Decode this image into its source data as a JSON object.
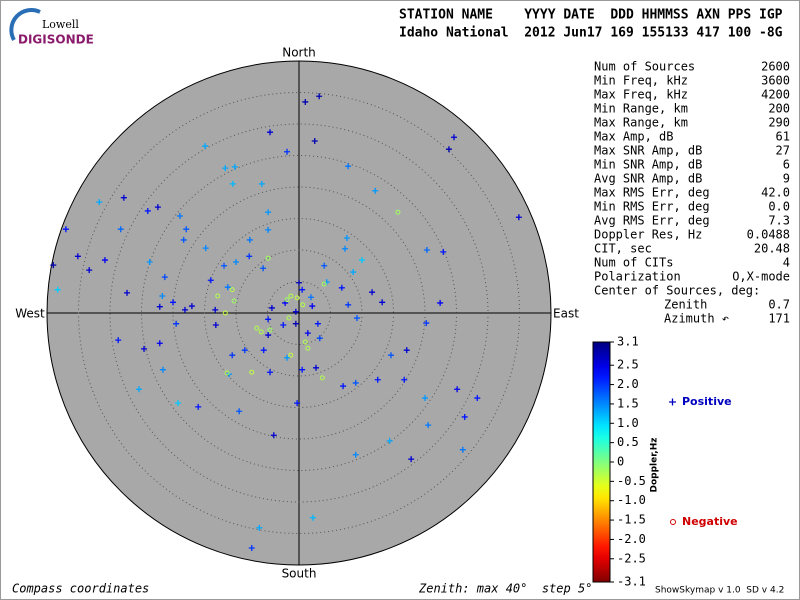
{
  "header": {
    "logo_top": "Lowell",
    "logo_bottom": "DIGISONDE",
    "columns_line": "STATION NAME    YYYY DATE  DDD HHMMSS AXN PPS IGP",
    "values_line": "Idaho National  2012 Jun17 169 155133 417 100 -8G"
  },
  "stats": [
    {
      "label": "Num of Sources",
      "value": "2600"
    },
    {
      "label": "Min Freq, kHz",
      "value": "3600"
    },
    {
      "label": "Max Freq, kHz",
      "value": "4200"
    },
    {
      "label": "Min Range, km",
      "value": "200"
    },
    {
      "label": "Max Range, km",
      "value": "290"
    },
    {
      "label": "Max Amp, dB",
      "value": "61"
    },
    {
      "label": "Max SNR Amp, dB",
      "value": "27"
    },
    {
      "label": "Min SNR Amp, dB",
      "value": "6"
    },
    {
      "label": "Avg SNR Amp, dB",
      "value": "9"
    },
    {
      "label": "Max RMS Err, deg",
      "value": "42.0"
    },
    {
      "label": "Min RMS Err, deg",
      "value": "0.0"
    },
    {
      "label": "Avg RMS Err, deg",
      "value": "7.3"
    },
    {
      "label": "Doppler Res, Hz",
      "value": "0.0488"
    },
    {
      "label": "CIT, sec",
      "value": "20.48"
    },
    {
      "label": "Num of CITs",
      "value": "4"
    },
    {
      "label": "Polarization",
      "value": "O,X-mode"
    }
  ],
  "center_of_sources": {
    "title": "Center of Sources, deg:",
    "rows": [
      {
        "label": "Zenith",
        "value": "0.7"
      },
      {
        "label": "Azimuth ↶",
        "value": "171"
      }
    ]
  },
  "footer": {
    "left": "Compass coordinates",
    "middle": "Zenith: max 40°  step 5°",
    "right": "ShowSkymap v 1.0  SD v 4.2"
  },
  "chart_data": {
    "type": "polar-scatter",
    "directions": {
      "north": "North",
      "south": "South",
      "east": "East",
      "west": "West"
    },
    "rlim": [
      0,
      40
    ],
    "rticks": [
      5,
      10,
      15,
      20,
      25,
      30,
      35
    ],
    "colorbar": {
      "label": "Doppler,Hz",
      "clim": [
        -3.1,
        3.1
      ],
      "ticks": [
        3.1,
        2.5,
        {
          "value": 2,
          "label": "2.0"
        },
        1.5,
        {
          "value": 1,
          "label": "1.0"
        },
        0.5,
        0,
        -0.5,
        {
          "value": -1,
          "label": "-1.0"
        },
        -1.5,
        {
          "value": -2,
          "label": "-2.0"
        },
        -2.5,
        -3.1
      ]
    },
    "series": [
      {
        "name": "Positive",
        "color": "#0000c0",
        "marker": "+",
        "x": [
          1,
          3.2,
          -4.6,
          2.5,
          -1.9,
          -14.9,
          24.6,
          23.8,
          34.9,
          -37,
          -39,
          -35.1,
          -27.8,
          -31.7,
          -24,
          -22.4,
          -18.9,
          -17.9,
          -28.3,
          -10.2,
          -10.5,
          -4.9,
          -7.8,
          -7.9,
          -10,
          -11.9,
          -11.3,
          -14,
          -21.3,
          -23.7,
          -27.3,
          -33.3,
          -30.8,
          -38.3,
          -28.7,
          -24.6,
          -22.1,
          -21.6,
          -25.4,
          -19.2,
          -16,
          -9.5,
          -11.1,
          -10.6,
          -4,
          -0.3,
          -6.3,
          -7.5,
          2.2,
          9,
          14.4,
          17.8,
          20.5,
          26,
          26.3,
          25.1,
          28.3,
          20,
          16.7,
          12.5,
          9,
          7,
          14.6,
          17.1,
          20.2,
          22.4,
          13.2,
          11.6,
          9.2,
          7.8,
          6.8,
          10,
          7.3,
          8.6,
          4,
          4.4,
          1.9,
          0.5,
          -2.2,
          -4.3,
          -4.9,
          -4.9,
          -5.6,
          -8.6,
          -2.5,
          -0.5,
          1.4,
          3.3,
          3,
          2.1,
          -0.5,
          -13.3,
          -13.2,
          -17,
          -18.1,
          -22.1,
          -20,
          -19.5,
          -21.7,
          -4.6,
          -1.9,
          0.5,
          2.7,
          0,
          7.8,
          12.1,
          22.9,
          20.3,
          7.6,
          -4.9,
          -5.9,
          -11.7,
          -18.3,
          -14.8,
          -5.7
        ],
        "y": [
          33.5,
          34.4,
          28.7,
          27.3,
          25.6,
          26.5,
          27.9,
          26,
          15.2,
          13.3,
          7.6,
          9,
          18.3,
          17.6,
          16.2,
          16.8,
          15.4,
          13.3,
          13.3,
          23.2,
          20.5,
          16,
          11.6,
          9,
          8.1,
          7.5,
          4.1,
          5.2,
          5.7,
          8.1,
          3.2,
          6.8,
          8.4,
          3.7,
          -4.3,
          -5.7,
          -4.8,
          -9,
          -12.1,
          -14.3,
          -14.9,
          -15.6,
          -9.7,
          -6.7,
          -19.4,
          -14.3,
          -34.1,
          -37.3,
          -32.5,
          -22.5,
          -20.3,
          -23.2,
          -17.8,
          -21.7,
          -16.5,
          -12.1,
          -13.5,
          -13.5,
          -10.6,
          -10.6,
          -11.1,
          -11.6,
          -6.7,
          -5.9,
          -1.6,
          1.6,
          1.7,
          3.3,
          -0.8,
          1.3,
          4,
          8.4,
          10.2,
          6.5,
          7.5,
          4.9,
          2.5,
          3.7,
          1.6,
          0.8,
          -1,
          -3.5,
          -5.9,
          -5.9,
          -1.9,
          -1.7,
          -3.2,
          -4,
          -1.7,
          1.1,
          0.2,
          0.5,
          -1.9,
          1.1,
          0.5,
          1,
          1.7,
          -1.7,
          2.7,
          -9.4,
          -7.1,
          -9,
          -8.7,
          4.8,
          23.3,
          19.4,
          9.7,
          10,
          11.9,
          13.2,
          20.5,
          23,
          11.6,
          10.3,
          7.1
        ],
        "values": [
          2.8,
          2.8,
          2.6,
          2.8,
          2,
          1.3,
          2.6,
          2.8,
          2.6,
          2.2,
          2.8,
          2.6,
          2.6,
          1.3,
          2.2,
          2.6,
          1.6,
          1.8,
          1.7,
          1.3,
          1.2,
          1.4,
          1.6,
          2,
          1.5,
          1.8,
          1.6,
          2.2,
          1.9,
          1.4,
          2.6,
          2.6,
          2.4,
          1.1,
          2.2,
          2.6,
          2.4,
          1.5,
          1.3,
          1.1,
          2.2,
          1.8,
          1.4,
          2,
          2.6,
          2.2,
          1.3,
          2,
          1.2,
          1.5,
          1.3,
          2.6,
          1.6,
          1.6,
          2.2,
          2.4,
          2.2,
          1.4,
          2.2,
          2.2,
          1.8,
          2.2,
          1.8,
          2.6,
          2,
          2.4,
          2.6,
          2.6,
          1.8,
          2,
          2.2,
          1.1,
          1.5,
          1.3,
          1.8,
          1.4,
          1.6,
          2.2,
          2.4,
          2.6,
          2.2,
          2.6,
          2.2,
          2,
          2.2,
          2.8,
          2.4,
          1.9,
          2.2,
          2.4,
          2.6,
          2.6,
          2.6,
          2.6,
          2.6,
          2.6,
          2.2,
          2,
          1.5,
          2.2,
          1.4,
          2.2,
          2.6,
          2.8,
          1.6,
          1.4,
          2.2,
          1.7,
          1.4,
          1.5,
          1.3,
          1.3,
          1.8,
          1.5,
          1.8
        ]
      },
      {
        "name": "Negative",
        "color": "#d00000",
        "marker": "o",
        "x": [
          15.7,
          -12.9,
          -10.3,
          -11.7,
          -6.7,
          -6,
          -4.6,
          -1.3,
          -1.9,
          -0.3,
          0.6,
          -1.3,
          -1.6,
          1,
          1.4,
          3.7,
          4,
          -10.6,
          -7.5,
          -11.4,
          -4.9
        ],
        "y": [
          16,
          2.7,
          1.9,
          0,
          -2.4,
          -3,
          -2.7,
          2.7,
          2.1,
          2.4,
          1.3,
          -6.7,
          -0.8,
          -4.6,
          -5.6,
          -10.3,
          4.6,
          3.7,
          -9.4,
          -9.5,
          8.7
        ],
        "values": [
          -0.2,
          -0.3,
          -0.2,
          -0.4,
          -0.3,
          -0.3,
          -0.2,
          -0.3,
          -0.2,
          -0.4,
          -0.3,
          -0.4,
          -0.3,
          -0.3,
          -0.3,
          -0.3,
          -0.2,
          -0.3,
          -0.4,
          -0.3,
          -0.2
        ]
      }
    ]
  }
}
